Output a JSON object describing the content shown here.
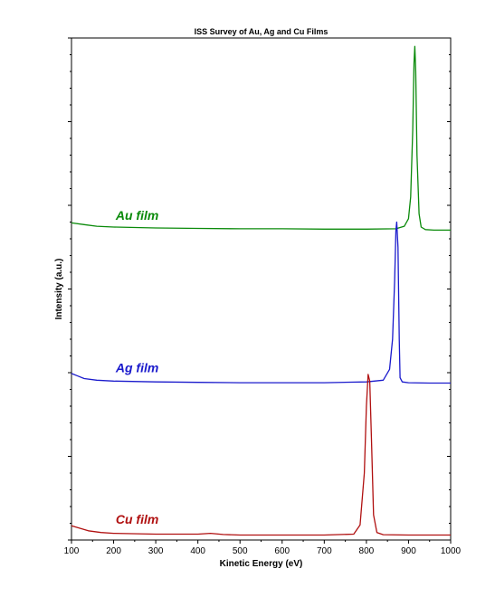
{
  "chart_data": {
    "type": "line",
    "title": "ISS Survey of Au, Ag and Cu Films",
    "xlabel": "Kinetic Energy (eV)",
    "ylabel": "Intensity (a.u.)",
    "xlim": [
      100,
      1000
    ],
    "ylim": [
      0,
      3.0
    ],
    "x_ticks": [
      100,
      200,
      300,
      400,
      500,
      600,
      700,
      800,
      900,
      1000
    ],
    "y_tick_labels_shown": false,
    "grid": false,
    "legend": "none",
    "series": [
      {
        "name": "Au film",
        "color": "#0a8a0a",
        "x": [
          100,
          130,
          160,
          200,
          300,
          400,
          500,
          600,
          700,
          800,
          870,
          890,
          900,
          905,
          910,
          913,
          915,
          917,
          920,
          925,
          930,
          940,
          960,
          1000
        ],
        "y": [
          1.895,
          1.885,
          1.875,
          1.87,
          1.865,
          1.862,
          1.86,
          1.86,
          1.858,
          1.858,
          1.86,
          1.875,
          1.92,
          2.05,
          2.45,
          2.85,
          2.95,
          2.8,
          2.3,
          1.95,
          1.87,
          1.855,
          1.852,
          1.852
        ]
      },
      {
        "name": "Ag film",
        "color": "#1a1acc",
        "x": [
          100,
          115,
          130,
          160,
          200,
          300,
          400,
          500,
          600,
          700,
          800,
          840,
          855,
          862,
          867,
          870,
          872,
          875,
          878,
          880,
          885,
          900,
          950,
          1000
        ],
        "y": [
          0.995,
          0.98,
          0.965,
          0.955,
          0.95,
          0.945,
          0.942,
          0.94,
          0.94,
          0.94,
          0.945,
          0.955,
          1.02,
          1.2,
          1.55,
          1.85,
          1.9,
          1.75,
          1.2,
          0.97,
          0.945,
          0.94,
          0.938,
          0.938
        ]
      },
      {
        "name": "Cu film",
        "color": "#b01010",
        "x": [
          100,
          120,
          140,
          170,
          200,
          300,
          400,
          430,
          460,
          500,
          600,
          700,
          770,
          785,
          795,
          800,
          804,
          808,
          812,
          817,
          825,
          840,
          900,
          1000
        ],
        "y": [
          0.085,
          0.07,
          0.055,
          0.045,
          0.04,
          0.035,
          0.035,
          0.04,
          0.033,
          0.03,
          0.03,
          0.03,
          0.035,
          0.09,
          0.4,
          0.8,
          0.99,
          0.95,
          0.6,
          0.15,
          0.045,
          0.032,
          0.03,
          0.03
        ]
      }
    ],
    "annotations": [
      {
        "text": "Au film",
        "x": 205,
        "y": 1.88,
        "color": "#0a8a0a"
      },
      {
        "text": "Ag film",
        "x": 205,
        "y": 0.97,
        "color": "#1a1acc"
      },
      {
        "text": "Cu film",
        "x": 205,
        "y": 0.065,
        "color": "#b01010"
      }
    ]
  }
}
